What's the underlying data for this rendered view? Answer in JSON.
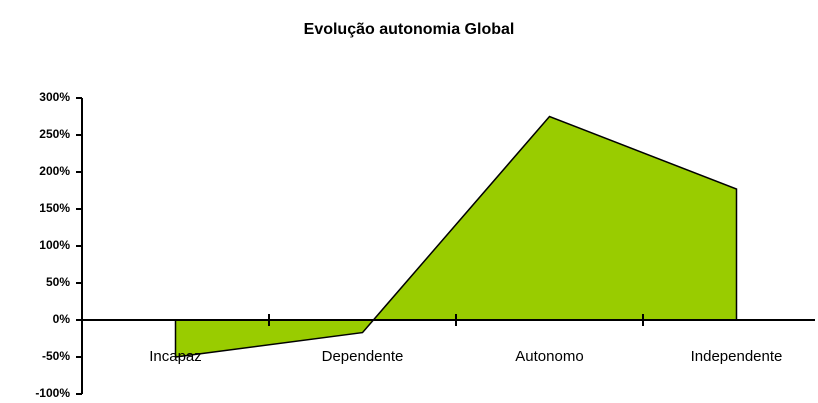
{
  "chart_data": {
    "type": "area",
    "title": "Evolução autonomia Global",
    "categories": [
      "Incapaz",
      "Dependente",
      "Autonomo",
      "Independente"
    ],
    "values": [
      -50,
      -17,
      275,
      177
    ],
    "color": "#99cc00",
    "ylim": [
      -100,
      300
    ],
    "yticks": [
      {
        "value": -100,
        "label": "-100%"
      },
      {
        "value": -50,
        "label": "-50%"
      },
      {
        "value": 0,
        "label": "0%"
      },
      {
        "value": 50,
        "label": "50%"
      },
      {
        "value": 100,
        "label": "100%"
      },
      {
        "value": 150,
        "label": "150%"
      },
      {
        "value": 200,
        "label": "200%"
      },
      {
        "value": 250,
        "label": "250%"
      },
      {
        "value": 300,
        "label": "300%"
      }
    ]
  }
}
